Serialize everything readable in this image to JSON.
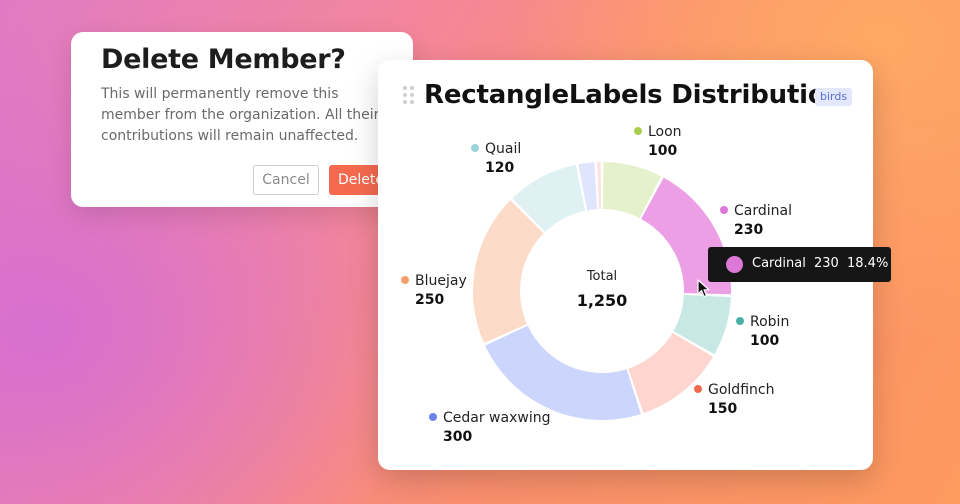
{
  "modal": {
    "title": "Delete Member?",
    "message": "This will permanently remove this\nmember from the organization. All their\ncontributions will remain unaffected.",
    "cancel_label": "Cancel",
    "delete_label": "Delete Member"
  },
  "card": {
    "title": "RectangleLabels Distribution",
    "tag": "birds"
  },
  "chart_data": {
    "type": "pie",
    "title": "RectangleLabels Distribution",
    "center_label": "Total",
    "center_value": "1,250",
    "slices": [
      {
        "label": "Loon",
        "value": 100,
        "display": "100",
        "color": "#a8cf50",
        "fill": "#e5f1cb"
      },
      {
        "label": "Cardinal",
        "value": 230,
        "display": "230",
        "color": "#dd78d6",
        "fill": "#ec9fe5"
      },
      {
        "label": "Robin",
        "value": 100,
        "display": "100",
        "color": "#49b2a8",
        "fill": "#c7e8e5"
      },
      {
        "label": "Goldfinch",
        "value": 150,
        "display": "150",
        "color": "#f3694e",
        "fill": "#fed6cf"
      },
      {
        "label": "Cedar waxwing",
        "value": 300,
        "display": "300",
        "color": "#6a83f0",
        "fill": "#ccd5fb"
      },
      {
        "label": "Bluejay",
        "value": 250,
        "display": "250",
        "color": "#f59f6b",
        "fill": "#fcdcc8"
      },
      {
        "label": "Quail",
        "value": 120,
        "display": "120",
        "color": "#9ad3dc",
        "fill": "#dff1f3"
      },
      {
        "label": "",
        "value": 30,
        "display": "",
        "color": "#a4b5f7",
        "fill": "#dfe5fd"
      },
      {
        "label": "",
        "value": 10,
        "display": "",
        "color": "#f5b3ad",
        "fill": "#fde2df"
      }
    ],
    "tooltip": {
      "label": "Cardinal",
      "value": "230",
      "percent": "18.4%",
      "color": "#dd78d6"
    }
  }
}
